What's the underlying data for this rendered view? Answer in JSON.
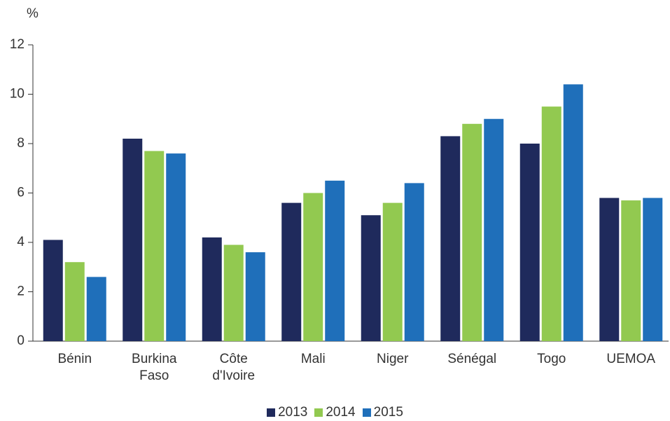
{
  "chart_data": {
    "type": "bar",
    "y_label": "%",
    "categories": [
      "Bénin",
      "Burkina Faso",
      "Côte d'Ivoire",
      "Mali",
      "Niger",
      "Sénégal",
      "Togo",
      "UEMOA"
    ],
    "series": [
      {
        "name": "2013",
        "color": "#1f2a5c",
        "values": [
          4.1,
          8.2,
          4.2,
          5.6,
          5.1,
          8.3,
          8.0,
          5.8
        ]
      },
      {
        "name": "2014",
        "color": "#92c950",
        "values": [
          3.2,
          7.7,
          3.9,
          6.0,
          5.6,
          8.8,
          9.5,
          5.7
        ]
      },
      {
        "name": "2015",
        "color": "#1f6fba",
        "values": [
          2.6,
          7.6,
          3.6,
          6.5,
          6.4,
          9.0,
          10.4,
          5.8
        ]
      }
    ],
    "ylim": [
      0,
      12
    ],
    "yticks": [
      0,
      2,
      4,
      6,
      8,
      10,
      12
    ],
    "legend": "bottom"
  }
}
